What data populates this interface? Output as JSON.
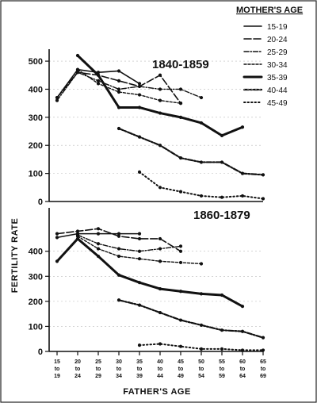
{
  "legend": {
    "title": "MOTHER'S AGE",
    "items": [
      "15-19",
      "20-24",
      "25-29",
      "30-34",
      "35-39",
      "40-44",
      "45-49"
    ]
  },
  "y_axis_label": "FERTILITY RATE",
  "x_axis_label": "FATHER'S AGE",
  "series_styles": [
    {
      "width": 1.6,
      "dash": ""
    },
    {
      "width": 1.6,
      "dash": "9 3"
    },
    {
      "width": 1.4,
      "dash": "6 2 1.5 2"
    },
    {
      "width": 1.4,
      "dash": "3 2"
    },
    {
      "width": 3.0,
      "dash": ""
    },
    {
      "width": 2.2,
      "dash": "6 2 2 2"
    },
    {
      "width": 2.0,
      "dash": "1.5 3"
    }
  ],
  "chart_data": [
    {
      "type": "line",
      "title": "1840-1859",
      "xlabel": "FATHER'S AGE",
      "ylabel": "FERTILITY RATE",
      "ylim": [
        0,
        520
      ],
      "yticks": [
        0,
        100,
        200,
        300,
        400,
        500
      ],
      "categories": [
        "15 to 19",
        "20 to 24",
        "25 to 29",
        "30 to 34",
        "35 to 39",
        "40 to 44",
        "45 to 49",
        "50 to 54",
        "55 to 59",
        "60 to 64",
        "65 to 69"
      ],
      "series": [
        {
          "name": "15-19",
          "values": [
            370,
            470,
            460,
            465,
            420,
            null,
            null,
            null,
            null,
            null,
            null
          ]
        },
        {
          "name": "20-24",
          "values": [
            370,
            460,
            450,
            430,
            410,
            450,
            350,
            null,
            null,
            null,
            null
          ]
        },
        {
          "name": "25-29",
          "values": [
            360,
            460,
            430,
            400,
            410,
            400,
            400,
            370,
            null,
            null,
            null
          ]
        },
        {
          "name": "30-34",
          "values": [
            null,
            470,
            420,
            390,
            380,
            360,
            350,
            null,
            null,
            null,
            null
          ]
        },
        {
          "name": "35-39",
          "values": [
            null,
            520,
            450,
            335,
            335,
            315,
            300,
            280,
            235,
            265,
            null
          ]
        },
        {
          "name": "40-44",
          "values": [
            null,
            null,
            null,
            260,
            230,
            200,
            155,
            140,
            140,
            100,
            95
          ]
        },
        {
          "name": "45-49",
          "values": [
            null,
            null,
            null,
            null,
            105,
            50,
            35,
            20,
            15,
            20,
            10
          ]
        }
      ]
    },
    {
      "type": "line",
      "title": "1860-1879",
      "xlabel": "FATHER'S AGE",
      "ylabel": "FERTILITY RATE",
      "ylim": [
        0,
        510
      ],
      "yticks": [
        0,
        100,
        200,
        300,
        400
      ],
      "categories": [
        "15 to 19",
        "20 to 24",
        "25 to 29",
        "30 to 34",
        "35 to 39",
        "40 to 44",
        "45 to 49",
        "50 to 54",
        "55 to 59",
        "60 to 64",
        "65 to 69"
      ],
      "series": [
        {
          "name": "15-19",
          "values": [
            455,
            470,
            470,
            470,
            470,
            null,
            null,
            null,
            null,
            null,
            null
          ]
        },
        {
          "name": "20-24",
          "values": [
            470,
            480,
            490,
            460,
            450,
            450,
            400,
            null,
            null,
            null,
            null
          ]
        },
        {
          "name": "25-29",
          "values": [
            null,
            465,
            430,
            410,
            400,
            410,
            420,
            null,
            null,
            null,
            null
          ]
        },
        {
          "name": "30-34",
          "values": [
            null,
            460,
            410,
            380,
            370,
            360,
            355,
            350,
            null,
            null,
            null
          ]
        },
        {
          "name": "35-39",
          "values": [
            360,
            450,
            380,
            305,
            275,
            250,
            240,
            230,
            225,
            180,
            null
          ]
        },
        {
          "name": "40-44",
          "values": [
            null,
            null,
            null,
            205,
            185,
            155,
            125,
            105,
            85,
            80,
            55
          ]
        },
        {
          "name": "45-49",
          "values": [
            null,
            null,
            null,
            null,
            25,
            30,
            20,
            10,
            10,
            5,
            5
          ]
        }
      ]
    }
  ]
}
